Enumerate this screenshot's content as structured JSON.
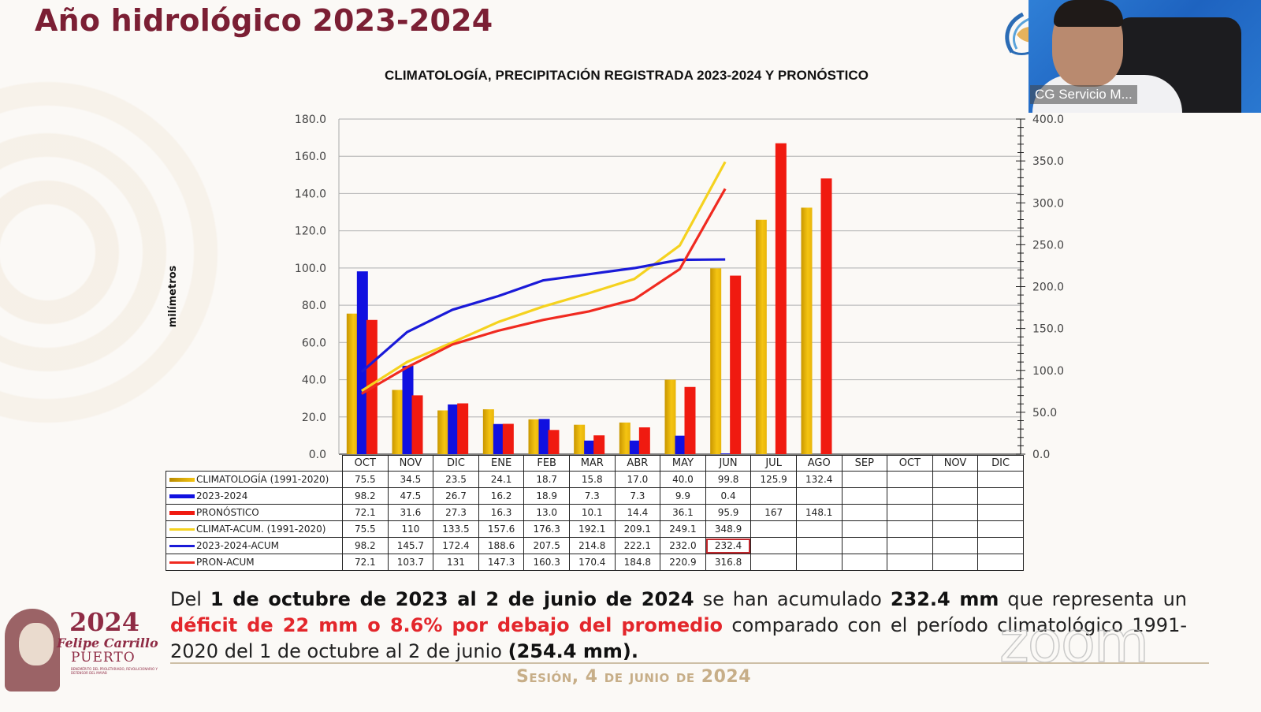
{
  "slide": {
    "title": "Año hidrológico 2023-2024",
    "footer": "Sesión, 4 de junio de 2024",
    "badge": {
      "year": "2024",
      "name": "Felipe Carrillo",
      "surname": "PUERTO",
      "caption": "BENEMÉRITO DEL PROLETARIADO, REVOLUCIONARIO Y DEFENSOR DEL MAYAB"
    },
    "watermark": "zoom"
  },
  "video": {
    "participant_name": "CG Servicio M..."
  },
  "summary": {
    "p1": "Del ",
    "b1": "1 de octubre de 2023 al 2 de junio de 2024",
    "p2": " se han acumulado ",
    "b2": "232.4 mm",
    "p3": " que representa un ",
    "r1": "déficit de 22 mm o 8.6% por debajo del promedio",
    "p4": " comparado con el período climatológico 1991-2020 del 1 de octubre al 2 de junio ",
    "b3": "(254.4 mm)."
  },
  "colors": {
    "climatologia": "#e8b400",
    "registrada": "#1010e0",
    "pronostico": "#f01a10",
    "climat_acum": "#f5d21f",
    "registrada_acum": "#1a1ad8",
    "pron_acum": "#f02a20",
    "title": "#7b1f34",
    "deficit_text": "#e3262b"
  },
  "chart_data": {
    "type": "bar",
    "title": "CLIMATOLOGÍA, PRECIPITACIÓN REGISTRADA 2023-2024 Y PRONÓSTICO",
    "ylabel": "milímetros",
    "ylim": [
      0,
      180
    ],
    "y_ticks": [
      "0.0",
      "20.0",
      "40.0",
      "60.0",
      "80.0",
      "100.0",
      "120.0",
      "140.0",
      "160.0",
      "180.0"
    ],
    "y2lim": [
      0,
      400
    ],
    "y2_ticks": [
      "0.0",
      "50.0",
      "100.0",
      "150.0",
      "200.0",
      "250.0",
      "300.0",
      "350.0",
      "400.0"
    ],
    "grid": true,
    "categories": [
      "OCT",
      "NOV",
      "DIC",
      "ENE",
      "FEB",
      "MAR",
      "ABR",
      "MAY",
      "JUN",
      "JUL",
      "AGO",
      "SEP",
      "OCT",
      "NOV",
      "DIC"
    ],
    "series": [
      {
        "name": "CLIMATOLOGÍA (1991-2020)",
        "kind": "bar",
        "axis": "left",
        "color_key": "climatologia",
        "values": [
          75.5,
          34.5,
          23.5,
          24.1,
          18.7,
          15.8,
          17.0,
          40.0,
          99.8,
          125.9,
          132.4,
          null,
          null,
          null,
          null
        ],
        "labels": [
          "75.5",
          "34.5",
          "23.5",
          "24.1",
          "18.7",
          "15.8",
          "17.0",
          "40.0",
          "99.8",
          "125.9",
          "132.4",
          "",
          "",
          "",
          ""
        ]
      },
      {
        "name": "2023-2024",
        "kind": "bar",
        "axis": "left",
        "color_key": "registrada",
        "values": [
          98.2,
          47.5,
          26.7,
          16.2,
          18.9,
          7.3,
          7.3,
          9.9,
          0.4,
          null,
          null,
          null,
          null,
          null,
          null
        ],
        "labels": [
          "98.2",
          "47.5",
          "26.7",
          "16.2",
          "18.9",
          "7.3",
          "7.3",
          "9.9",
          "0.4",
          "",
          "",
          "",
          "",
          "",
          ""
        ]
      },
      {
        "name": "PRONÓSTICO",
        "kind": "bar",
        "axis": "left",
        "color_key": "pronostico",
        "values": [
          72.1,
          31.6,
          27.3,
          16.3,
          13.0,
          10.1,
          14.4,
          36.1,
          95.9,
          167,
          148.1,
          null,
          null,
          null,
          null
        ],
        "labels": [
          "72.1",
          "31.6",
          "27.3",
          "16.3",
          "13.0",
          "10.1",
          "14.4",
          "36.1",
          "95.9",
          "167",
          "148.1",
          "",
          "",
          "",
          ""
        ]
      },
      {
        "name": "CLIMAT-ACUM. (1991-2020)",
        "kind": "line",
        "axis": "right",
        "color_key": "climat_acum",
        "values": [
          75.5,
          110,
          133.5,
          157.6,
          176.3,
          192.1,
          209.1,
          249.1,
          348.9,
          null,
          null,
          null,
          null,
          null,
          null
        ],
        "labels": [
          "75.5",
          "110",
          "133.5",
          "157.6",
          "176.3",
          "192.1",
          "209.1",
          "249.1",
          "348.9",
          "",
          "",
          "",
          "",
          "",
          ""
        ]
      },
      {
        "name": "2023-2024-ACUM",
        "kind": "line",
        "axis": "right",
        "color_key": "registrada_acum",
        "values": [
          98.2,
          145.7,
          172.4,
          188.6,
          207.5,
          214.8,
          222.1,
          232.0,
          232.4,
          null,
          null,
          null,
          null,
          null,
          null
        ],
        "labels": [
          "98.2",
          "145.7",
          "172.4",
          "188.6",
          "207.5",
          "214.8",
          "222.1",
          "232.0",
          "232.4",
          "",
          "",
          "",
          "",
          "",
          ""
        ],
        "highlight_index": 8
      },
      {
        "name": "PRON-ACUM",
        "kind": "line",
        "axis": "right",
        "color_key": "pron_acum",
        "values": [
          72.1,
          103.7,
          131,
          147.3,
          160.3,
          170.4,
          184.8,
          220.9,
          316.8,
          null,
          null,
          null,
          null,
          null,
          null
        ],
        "labels": [
          "72.1",
          "103.7",
          "131",
          "147.3",
          "160.3",
          "170.4",
          "184.8",
          "220.9",
          "316.8",
          "",
          "",
          "",
          "",
          "",
          ""
        ]
      }
    ],
    "legend": "table-below"
  }
}
